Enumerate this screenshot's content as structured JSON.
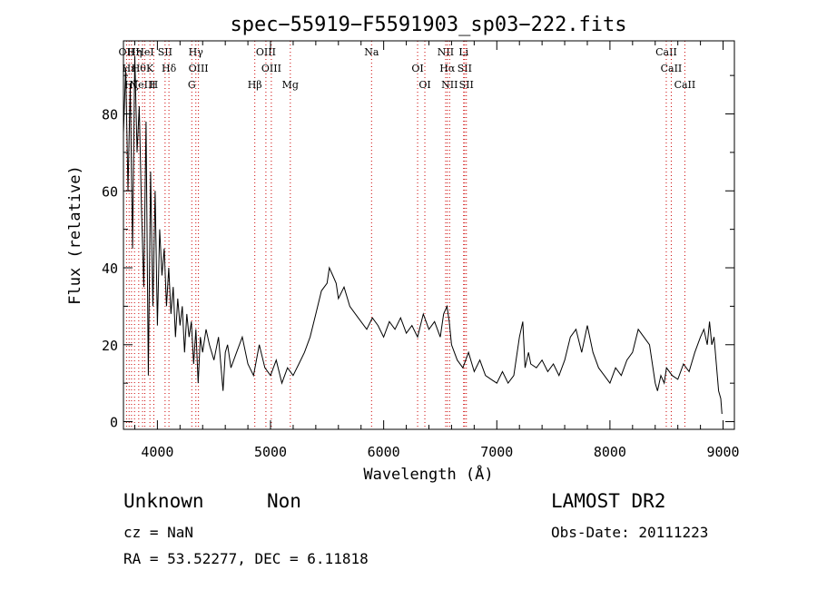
{
  "chart_data": {
    "type": "line",
    "title": "spec−55919−F5591903_sp03−222.fits",
    "xlabel": "Wavelength (Å)",
    "ylabel": "Flux (relative)",
    "xlim": [
      3700,
      9100
    ],
    "ylim": [
      -2,
      99
    ],
    "x_ticks": [
      4000,
      5000,
      6000,
      7000,
      8000,
      9000
    ],
    "y_ticks": [
      0,
      20,
      40,
      60,
      80
    ],
    "grid": false,
    "series": [
      {
        "x": [
          3700,
          3720,
          3740,
          3760,
          3780,
          3800,
          3820,
          3840,
          3860,
          3880,
          3900,
          3920,
          3940,
          3960,
          3980,
          4000,
          4020,
          4040,
          4060,
          4080,
          4100,
          4120,
          4140,
          4160,
          4180,
          4200,
          4220,
          4240,
          4260,
          4280,
          4300,
          4320,
          4340,
          4360,
          4380,
          4400,
          4430,
          4460,
          4500,
          4540,
          4580,
          4600,
          4620,
          4650,
          4700,
          4750,
          4800,
          4850,
          4900,
          4950,
          5000,
          5050,
          5100,
          5150,
          5200,
          5250,
          5300,
          5350,
          5400,
          5450,
          5500,
          5520,
          5550,
          5580,
          5600,
          5650,
          5700,
          5750,
          5800,
          5850,
          5900,
          5950,
          6000,
          6050,
          6100,
          6150,
          6200,
          6250,
          6300,
          6350,
          6400,
          6450,
          6500,
          6530,
          6560,
          6580,
          6600,
          6650,
          6700,
          6750,
          6800,
          6850,
          6900,
          6950,
          7000,
          7050,
          7100,
          7150,
          7200,
          7230,
          7250,
          7280,
          7300,
          7350,
          7400,
          7450,
          7500,
          7550,
          7600,
          7650,
          7700,
          7750,
          7800,
          7850,
          7900,
          7950,
          8000,
          8050,
          8100,
          8150,
          8200,
          8250,
          8300,
          8350,
          8400,
          8420,
          8450,
          8480,
          8500,
          8550,
          8600,
          8650,
          8700,
          8750,
          8800,
          8830,
          8860,
          8880,
          8900,
          8920,
          8940,
          8960,
          8980,
          8990
        ],
        "y": [
          75,
          92,
          60,
          88,
          45,
          95,
          70,
          82,
          55,
          35,
          78,
          12,
          65,
          30,
          60,
          25,
          50,
          38,
          45,
          30,
          40,
          28,
          35,
          22,
          32,
          25,
          30,
          18,
          28,
          22,
          26,
          15,
          24,
          10,
          22,
          18,
          24,
          20,
          16,
          22,
          8,
          18,
          20,
          14,
          18,
          22,
          15,
          12,
          20,
          14,
          12,
          16,
          10,
          14,
          12,
          15,
          18,
          22,
          28,
          34,
          36,
          40,
          38,
          36,
          32,
          35,
          30,
          28,
          26,
          24,
          27,
          25,
          22,
          26,
          24,
          27,
          23,
          25,
          22,
          28,
          24,
          26,
          22,
          28,
          30,
          26,
          20,
          16,
          14,
          18,
          13,
          16,
          12,
          11,
          10,
          13,
          10,
          12,
          22,
          26,
          14,
          18,
          15,
          14,
          16,
          13,
          15,
          12,
          16,
          22,
          24,
          18,
          25,
          18,
          14,
          12,
          10,
          14,
          12,
          16,
          18,
          24,
          22,
          20,
          10,
          8,
          12,
          10,
          14,
          12,
          11,
          15,
          13,
          18,
          22,
          24,
          20,
          26,
          20,
          22,
          15,
          8,
          6,
          2
        ]
      }
    ],
    "line_markers": {
      "set_a": [
        {
          "wave": 3727,
          "label": "OII"
        },
        {
          "wave": 3750,
          "label": "Hε"
        },
        {
          "wave": 3771,
          "label": "Hζ"
        },
        {
          "wave": 3798,
          "label": "Hη"
        },
        {
          "wave": 3835,
          "label": "Hθ"
        },
        {
          "wave": 3869,
          "label": "NeIII"
        },
        {
          "wave": 3889,
          "label": "HeI"
        },
        {
          "wave": 3934,
          "label": "K"
        },
        {
          "wave": 3968,
          "label": "H"
        },
        {
          "wave": 4068,
          "label": "SII"
        },
        {
          "wave": 4102,
          "label": "Hδ"
        },
        {
          "wave": 4304,
          "label": "G"
        },
        {
          "wave": 4340,
          "label": "Hγ"
        },
        {
          "wave": 4363,
          "label": "OIII"
        },
        {
          "wave": 4861,
          "label": "Hβ"
        },
        {
          "wave": 4959,
          "label": "OIII"
        },
        {
          "wave": 5007,
          "label": "OIII"
        },
        {
          "wave": 5175,
          "label": "Mg"
        },
        {
          "wave": 5893,
          "label": "Na"
        },
        {
          "wave": 6300,
          "label": "OI"
        },
        {
          "wave": 6364,
          "label": "OI"
        },
        {
          "wave": 6548,
          "label": "NII"
        },
        {
          "wave": 6563,
          "label": "Hα"
        },
        {
          "wave": 6583,
          "label": "NII"
        },
        {
          "wave": 6707,
          "label": "Li"
        },
        {
          "wave": 6716,
          "label": "SII"
        },
        {
          "wave": 6731,
          "label": "SII"
        },
        {
          "wave": 8498,
          "label": "CaII"
        },
        {
          "wave": 8542,
          "label": "CaII"
        },
        {
          "wave": 8662,
          "label": "CaII"
        }
      ]
    }
  },
  "footer": {
    "class_label": "Unknown",
    "subclass_label": "Non",
    "survey": "LAMOST DR2",
    "cz": "cz = NaN",
    "obs_date": "Obs-Date: 20111223",
    "radec": "RA =  53.52277, DEC =   6.11818"
  },
  "colors": {
    "spectrum": "#000000",
    "marker": "#cc0000",
    "axis": "#000000"
  }
}
